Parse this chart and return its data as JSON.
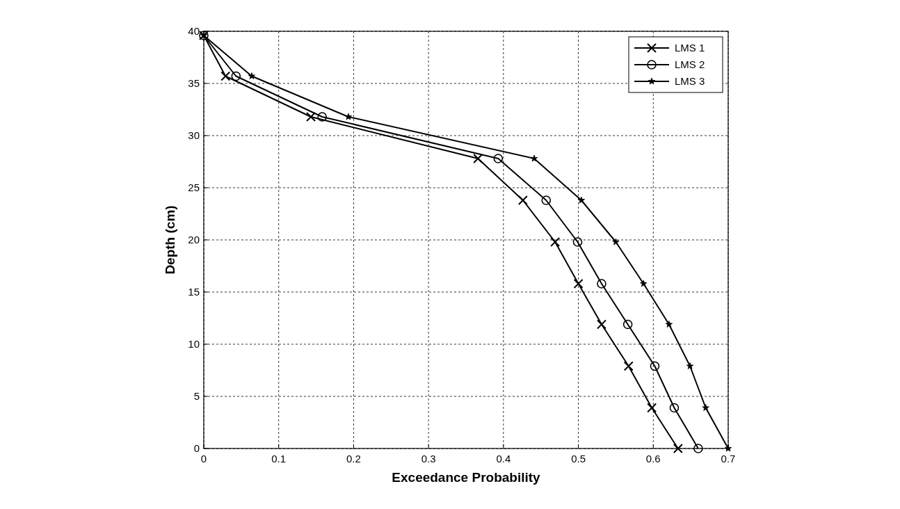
{
  "chart_data": {
    "type": "line",
    "xlabel": "Exceedance Probability",
    "ylabel": "Depth (cm)",
    "xlim": [
      0,
      0.7
    ],
    "xticks": [
      0,
      0.1,
      0.2,
      0.3,
      0.4,
      0.5,
      0.6,
      0.7
    ],
    "ylim": [
      0,
      40
    ],
    "yticks": [
      0,
      5,
      10,
      15,
      20,
      25,
      30,
      35,
      40
    ],
    "grid": true,
    "legend": "top right",
    "series": [
      {
        "name": "LMS 1",
        "color": "#000000",
        "marker": "cross",
        "x": [
          0,
          0.029,
          0.143,
          0.366,
          0.426,
          0.469,
          0.5,
          0.531,
          0.567,
          0.598,
          0.633
        ],
        "values": [
          39.6,
          35.7,
          31.8,
          27.8,
          23.8,
          19.8,
          15.8,
          11.9,
          7.9,
          3.9,
          0
        ]
      },
      {
        "name": "LMS 2",
        "color": "#000000",
        "marker": "circle",
        "x": [
          0,
          0.043,
          0.158,
          0.393,
          0.457,
          0.499,
          0.531,
          0.566,
          0.602,
          0.628,
          0.66
        ],
        "values": [
          39.6,
          35.7,
          31.8,
          27.8,
          23.8,
          19.8,
          15.8,
          11.9,
          7.9,
          3.9,
          0
        ]
      },
      {
        "name": "LMS 3",
        "color": "#000000",
        "marker": "star",
        "x": [
          0,
          0.064,
          0.193,
          0.441,
          0.504,
          0.55,
          0.587,
          0.621,
          0.649,
          0.67,
          0.7
        ],
        "values": [
          39.6,
          35.7,
          31.8,
          27.8,
          23.8,
          19.8,
          15.8,
          11.9,
          7.9,
          3.9,
          0
        ]
      }
    ]
  }
}
